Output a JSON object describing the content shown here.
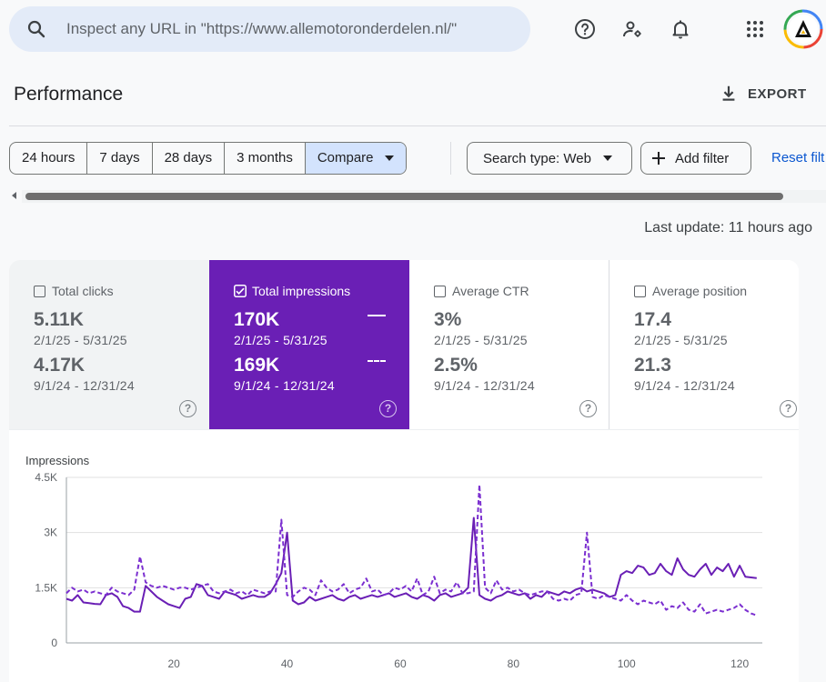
{
  "search": {
    "placeholder": "Inspect any URL in \"https://www.allemotoronderdelen.nl/\""
  },
  "header_icons": [
    "search-icon",
    "help-icon",
    "manage-users-icon",
    "bell-icon",
    "apps-grid-icon",
    "account-avatar"
  ],
  "page": {
    "title": "Performance",
    "export_label": "EXPORT"
  },
  "filters": {
    "ranges": [
      "24 hours",
      "7 days",
      "28 days",
      "3 months"
    ],
    "compare_label": "Compare",
    "search_type_label": "Search type: Web",
    "add_filter_label": "Add filter",
    "reset_label": "Reset filt"
  },
  "last_update": "Last update: 11 hours ago",
  "metrics": [
    {
      "label": "Total clicks",
      "checked": false,
      "value1": "5.11K",
      "range1": "2/1/25 - 5/31/25",
      "value2": "4.17K",
      "range2": "9/1/24 - 12/31/24"
    },
    {
      "label": "Total impressions",
      "checked": true,
      "value1": "170K",
      "range1": "2/1/25 - 5/31/25",
      "value2": "169K",
      "range2": "9/1/24 - 12/31/24"
    },
    {
      "label": "Average CTR",
      "checked": false,
      "value1": "3%",
      "range1": "2/1/25 - 5/31/25",
      "value2": "2.5%",
      "range2": "9/1/24 - 12/31/24"
    },
    {
      "label": "Average position",
      "checked": false,
      "value1": "17.4",
      "range1": "2/1/25 - 5/31/25",
      "value2": "21.3",
      "range2": "9/1/24 - 12/31/24"
    }
  ],
  "colors": {
    "accent": "#6a1fb5",
    "line_current": "#6a1fb5",
    "line_previous": "#7b2fd0",
    "button_selected": "#d3e3fd",
    "link": "#0b57d0"
  },
  "chart_data": {
    "type": "line",
    "ylabel": "Impressions",
    "ylim": [
      0,
      4500
    ],
    "yticks": [
      0,
      1500,
      3000,
      4500
    ],
    "ytick_labels": [
      "0",
      "1.5K",
      "3K",
      "4.5K"
    ],
    "xlim": [
      1,
      124
    ],
    "xticks": [
      20,
      40,
      60,
      80,
      100,
      120
    ],
    "grid": true,
    "series": [
      {
        "style": "solid",
        "values": [
          1200,
          1150,
          1300,
          1100,
          1080,
          1060,
          1050,
          1300,
          1350,
          1250,
          1000,
          950,
          850,
          850,
          1550,
          1400,
          1250,
          1150,
          1050,
          1000,
          950,
          1200,
          1250,
          1600,
          1550,
          1300,
          1250,
          1200,
          1400,
          1350,
          1300,
          1200,
          1250,
          1300,
          1250,
          1250,
          1350,
          1600,
          1900,
          3000,
          1150,
          1050,
          1100,
          1250,
          1150,
          1200,
          1250,
          1300,
          1200,
          1150,
          1250,
          1300,
          1200,
          1250,
          1300,
          1250,
          1300,
          1350,
          1250,
          1300,
          1350,
          1250,
          1200,
          1300,
          1250,
          1150,
          1300,
          1350,
          1250,
          1300,
          1350,
          1500,
          3400,
          1300,
          1200,
          1150,
          1250,
          1300,
          1400,
          1350,
          1300,
          1350,
          1200,
          1300,
          1250,
          1400,
          1350,
          1300,
          1400,
          1350,
          1450,
          1500,
          1400,
          1450,
          1400,
          1350,
          1250,
          1300,
          1850,
          1950,
          1900,
          2100,
          2050,
          1850,
          1900,
          2150,
          1950,
          1850,
          2300,
          2000,
          1850,
          1800,
          2000,
          2150,
          1850,
          2050,
          1950,
          2150,
          1800,
          2100,
          1800,
          1780,
          1760
        ],
        "color": "#6a1fb5"
      },
      {
        "style": "dashed",
        "values": [
          1350,
          1500,
          1400,
          1450,
          1350,
          1400,
          1350,
          1300,
          1500,
          1400,
          1350,
          1300,
          1450,
          2350,
          1650,
          1550,
          1500,
          1550,
          1500,
          1450,
          1500,
          1500,
          1450,
          1500,
          1550,
          1600,
          1400,
          1350,
          1400,
          1450,
          1350,
          1400,
          1300,
          1450,
          1400,
          1350,
          1400,
          1400,
          3350,
          1300,
          1250,
          1400,
          1500,
          1450,
          1300,
          1700,
          1500,
          1400,
          1450,
          1600,
          1350,
          1450,
          1500,
          1750,
          1400,
          1450,
          1300,
          1350,
          1500,
          1450,
          1550,
          1400,
          1750,
          1300,
          1400,
          1800,
          1350,
          1450,
          1400,
          1650,
          1350,
          1350,
          1400,
          4300,
          1500,
          1350,
          1700,
          1450,
          1500,
          1400,
          1450,
          1350,
          1300,
          1350,
          1400,
          1400,
          1200,
          1150,
          1200,
          1150,
          1300,
          1350,
          3000,
          1250,
          1200,
          1300,
          1250,
          1200,
          1150,
          1300,
          1150,
          1050,
          1150,
          1100,
          1050,
          1150,
          900,
          1000,
          950,
          1100,
          900,
          850,
          1050,
          800,
          850,
          900,
          850,
          900,
          950,
          1050,
          900,
          800,
          750
        ],
        "color": "#7b2fd0"
      }
    ]
  }
}
